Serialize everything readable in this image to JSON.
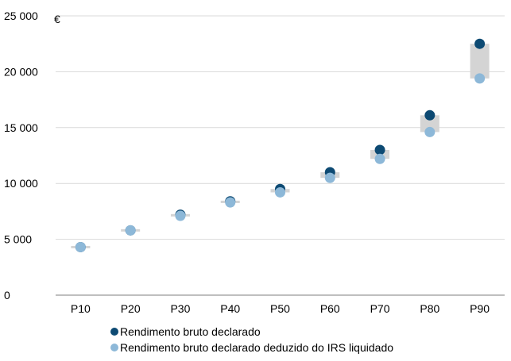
{
  "chart_data": {
    "type": "scatter",
    "unit_label": "€",
    "categories": [
      "P10",
      "P20",
      "P30",
      "P40",
      "P50",
      "P60",
      "P70",
      "P80",
      "P90"
    ],
    "ylim": [
      0,
      25000
    ],
    "yticks": [
      {
        "value": 0,
        "label": "0"
      },
      {
        "value": 5000,
        "label": "5 000"
      },
      {
        "value": 10000,
        "label": "10 000"
      },
      {
        "value": 15000,
        "label": "15 000"
      },
      {
        "value": 20000,
        "label": "20 000"
      },
      {
        "value": 25000,
        "label": "25 000"
      }
    ],
    "grid": true,
    "legend_position": "bottom",
    "series": [
      {
        "name": "Rendimento bruto declarado",
        "color": "#0d4a73",
        "values": [
          4300,
          5800,
          7200,
          8400,
          9500,
          11000,
          13000,
          16100,
          22500
        ]
      },
      {
        "name": "Rendimento bruto declarado deduzido do IRS liquidado",
        "color": "#8db8d8",
        "values": [
          4300,
          5800,
          7100,
          8300,
          9200,
          10500,
          12200,
          14600,
          19400
        ]
      }
    ],
    "gap_band_color": "#d4d4d4"
  }
}
